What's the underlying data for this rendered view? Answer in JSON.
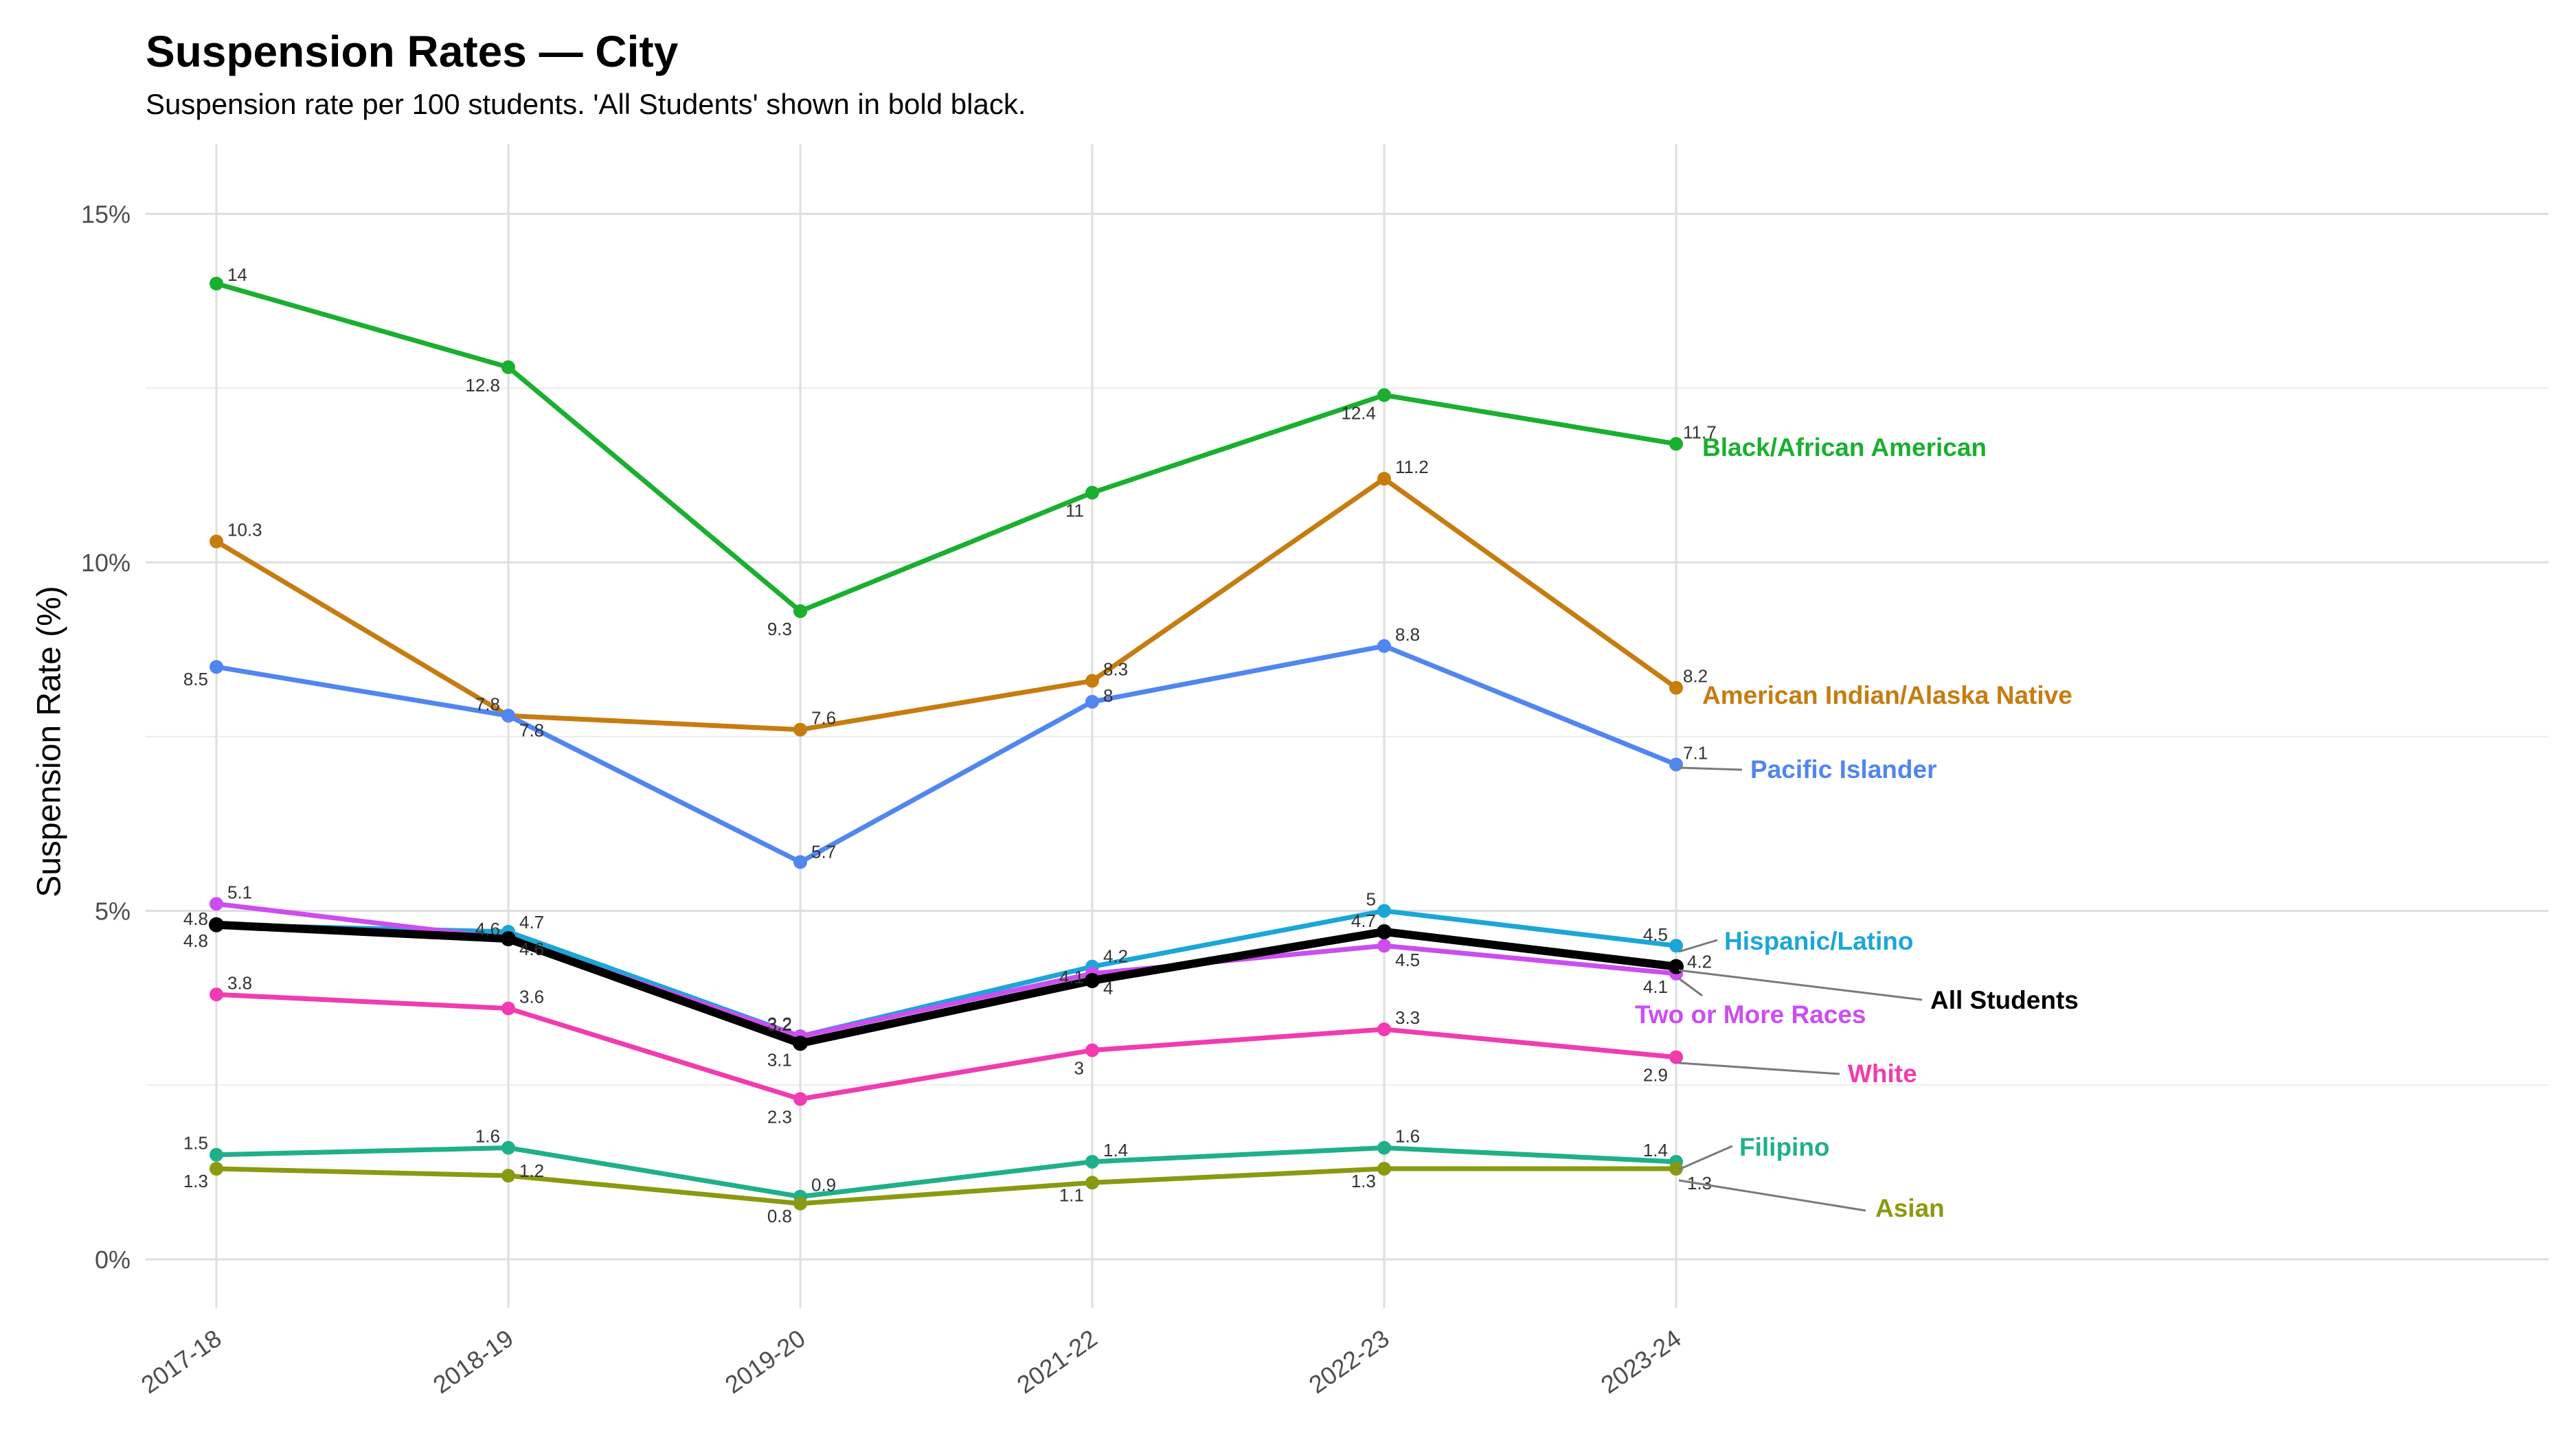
{
  "title": "Suspension Rates — City",
  "subtitle": "Suspension rate per 100 students. 'All Students' shown in bold black.",
  "chart_data": {
    "type": "line",
    "ylabel": "Suspension Rate (%)",
    "xlabel": "",
    "categories": [
      "2017-18",
      "2018-19",
      "2019-20",
      "2021-22",
      "2022-23",
      "2023-24"
    ],
    "ylim": [
      -0.7,
      16
    ],
    "yticks": [
      0,
      5,
      10,
      15
    ],
    "ytick_labels": [
      "0%",
      "5%",
      "10%",
      "15%"
    ],
    "grid": true,
    "legend": "direct labels at right end of lines",
    "series": [
      {
        "name": "Black/African American",
        "color": "#1aaf2f",
        "values": [
          14,
          12.8,
          9.3,
          11,
          12.4,
          11.7
        ],
        "point_labels": [
          "14",
          "12.8",
          "9.3",
          "11",
          "12.4",
          "11.7"
        ]
      },
      {
        "name": "American Indian/Alaska Native",
        "color": "#c77c10",
        "values": [
          10.3,
          7.8,
          7.6,
          8.3,
          11.2,
          8.2
        ],
        "point_labels": [
          "10.3",
          "7.8",
          "7.6",
          "8.3",
          "11.2",
          "8.2"
        ]
      },
      {
        "name": "Pacific Islander",
        "color": "#5086f0",
        "values": [
          8.5,
          7.8,
          5.7,
          8,
          8.8,
          7.1
        ],
        "point_labels": [
          "8.5",
          "7.8",
          "5.7",
          "8",
          "8.8",
          "7.1"
        ]
      },
      {
        "name": "Hispanic/Latino",
        "color": "#1ba6d8",
        "values": [
          4.8,
          4.7,
          3.2,
          4.2,
          5,
          4.5
        ],
        "point_labels": [
          "4.8",
          "4.7",
          "3.2",
          "4.2",
          "5",
          "4.5"
        ]
      },
      {
        "name": "Two or More Races",
        "color": "#cc4df0",
        "values": [
          5.1,
          4.6,
          3.2,
          4.1,
          4.5,
          4.1
        ],
        "point_labels": [
          "5.1",
          "4.6",
          "3.2",
          "4.1",
          "4.5",
          "4.1"
        ]
      },
      {
        "name": "All Students",
        "color": "#000000",
        "bold": true,
        "values": [
          4.8,
          4.6,
          3.1,
          4,
          4.7,
          4.2
        ],
        "point_labels": [
          "4.8",
          "4.6",
          "3.1",
          "4",
          "4.7",
          "4.2"
        ]
      },
      {
        "name": "White",
        "color": "#f03cb0",
        "values": [
          3.8,
          3.6,
          2.3,
          3,
          3.3,
          2.9
        ],
        "point_labels": [
          "3.8",
          "3.6",
          "2.3",
          "3",
          "3.3",
          "2.9"
        ]
      },
      {
        "name": "Filipino",
        "color": "#1fb08a",
        "values": [
          1.5,
          1.6,
          0.9,
          1.4,
          1.6,
          1.4
        ],
        "point_labels": [
          "1.5",
          "1.6",
          "0.9",
          "1.4",
          "1.6",
          "1.4"
        ]
      },
      {
        "name": "Asian",
        "color": "#8a9a10",
        "values": [
          1.3,
          1.2,
          0.8,
          1.1,
          1.3,
          1.3
        ],
        "point_labels": [
          "1.3",
          "1.2",
          "0.8",
          "1.1",
          "1.3",
          "1.3"
        ]
      }
    ]
  }
}
